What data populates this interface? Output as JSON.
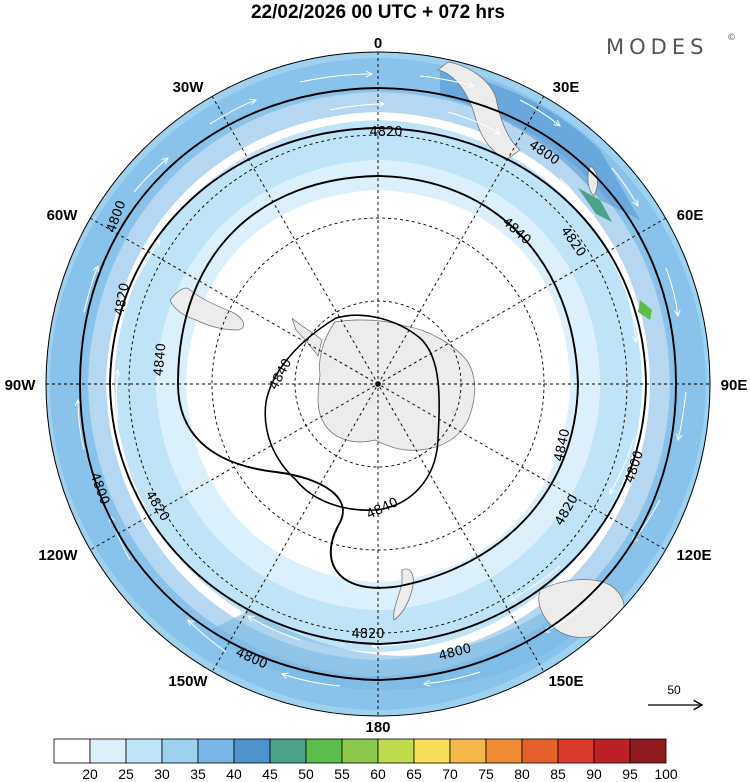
{
  "title": "22/02/2026  00 UTC  + 072 hrs",
  "brand": "MODES",
  "brand_mark": "©",
  "longitude_labels": {
    "n0": "0",
    "n30w": "30W",
    "n30e": "30E",
    "n60w": "60W",
    "n60e": "60E",
    "n90w": "90W",
    "n90e": "90E",
    "n120w": "120W",
    "n120e": "120E",
    "n150w": "150W",
    "n150e": "150E",
    "n180": "180"
  },
  "reference_vector": {
    "label": "50"
  },
  "contour_labels": {
    "c4820_top": "4820",
    "c4800_ne": "4800",
    "c4800_nw": "4800",
    "c4840_ne": "4840",
    "c4820_ne": "4820",
    "c4820_w": "4820",
    "c4840_w": "4840",
    "c4840_inner": "4840",
    "c4840_e": "4840",
    "c4800_e": "4800",
    "c4800_sw": "4800",
    "c4820_sw": "4820",
    "c4840_s": "4840",
    "c4820_se": "4820",
    "c4820_s": "4820",
    "c4800_s": "4800",
    "c4800_ssw": "4800"
  },
  "colorbar": {
    "ticks": [
      "20",
      "25",
      "30",
      "35",
      "40",
      "45",
      "50",
      "55",
      "60",
      "65",
      "70",
      "75",
      "80",
      "85",
      "90",
      "95",
      "100"
    ],
    "colors": [
      "#ffffff",
      "#dcf0fb",
      "#bfe3f7",
      "#9ed0f0",
      "#78b7e5",
      "#4f93cf",
      "#4aa489",
      "#5cbd4a",
      "#8cc84e",
      "#bedb4e",
      "#f6df57",
      "#f5b74a",
      "#ef8a35",
      "#e4612b",
      "#d93a2a",
      "#bd2128",
      "#8f1a1f"
    ]
  },
  "colors": {
    "land": "#ececec",
    "coast": "#777777",
    "vector": "#ffffff",
    "grid": "#000000"
  }
}
